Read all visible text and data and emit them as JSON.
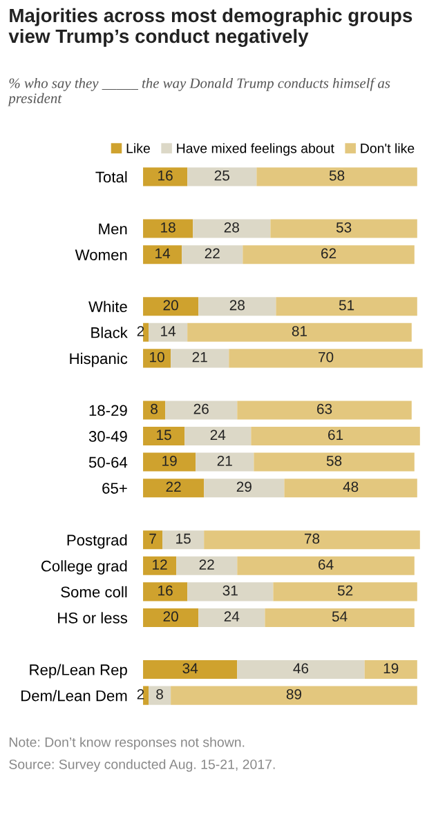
{
  "chart_data": {
    "type": "bar",
    "orientation": "horizontal",
    "stacked": true,
    "data_labels": true,
    "legend": "top",
    "tick_labels": "y",
    "grid": false,
    "title": "Majorities across most demographic groups view Trump’s conduct negatively",
    "subtitle": "% who say they _____ the way Donald Trump conducts himself as president",
    "categories": [
      "Total",
      null,
      "Men",
      "Women",
      null,
      "White",
      "Black",
      "Hispanic",
      null,
      "18-29",
      "30-49",
      "50-64",
      "65+",
      null,
      "Postgrad",
      "College grad",
      "Some coll",
      "HS or less",
      null,
      "Rep/Lean Rep",
      "Dem/Lean Dem"
    ],
    "xlim": [
      0,
      101
    ],
    "series": [
      {
        "name": "Like",
        "color": "#cfa22e",
        "values": [
          16,
          null,
          18,
          14,
          null,
          20,
          2,
          10,
          null,
          8,
          15,
          19,
          22,
          null,
          7,
          12,
          16,
          20,
          null,
          34,
          2
        ]
      },
      {
        "name": "Have mixed feelings about",
        "color": "#dcd8c7",
        "values": [
          25,
          null,
          28,
          22,
          null,
          28,
          14,
          21,
          null,
          26,
          24,
          21,
          29,
          null,
          15,
          22,
          31,
          24,
          null,
          46,
          8
        ]
      },
      {
        "name": "Don't like",
        "color": "#e3c77e",
        "values": [
          58,
          null,
          53,
          62,
          null,
          51,
          81,
          70,
          null,
          63,
          61,
          58,
          48,
          null,
          78,
          64,
          52,
          54,
          null,
          19,
          89
        ]
      }
    ],
    "annotations": [
      "Note: Don’t know responses not shown.",
      "Source: Survey conducted Aug. 15-21, 2017."
    ]
  }
}
